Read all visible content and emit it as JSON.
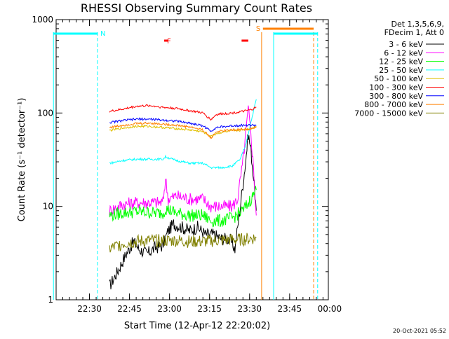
{
  "chart_data": {
    "type": "line",
    "title": "RHESSI Observing Summary Count Rates",
    "xlabel": "Start Time (12-Apr-12 22:20:02)",
    "ylabel": "Count Rate (s⁻¹ detector⁻¹)",
    "y_scale": "log",
    "ylim": [
      1,
      1000
    ],
    "y_ticks": [
      {
        "value": 1,
        "label": "1"
      },
      {
        "value": 10,
        "label": "10"
      },
      {
        "value": 100,
        "label": "100"
      },
      {
        "value": 1000,
        "label": "1000"
      }
    ],
    "xlim_min": [
      0,
      102
    ],
    "x_ticks": [
      {
        "t": 12.5,
        "label": "22:30"
      },
      {
        "t": 27.5,
        "label": "22:45"
      },
      {
        "t": 42.5,
        "label": "23:00"
      },
      {
        "t": 57.5,
        "label": "23:15"
      },
      {
        "t": 72.5,
        "label": "23:30"
      },
      {
        "t": 87.5,
        "label": "23:45"
      },
      {
        "t": 102.5,
        "label": "00:00"
      }
    ],
    "legend_header": [
      "Det 1,3,5,6,9,",
      "FDecim 1, Att 0"
    ],
    "legend_placement": "right of plot",
    "series": [
      {
        "name": "3 - 6 keV",
        "color": "#000000",
        "points": [
          [
            20,
            1.4
          ],
          [
            23,
            2.0
          ],
          [
            26,
            3.0
          ],
          [
            29,
            4.2
          ],
          [
            31,
            3.5
          ],
          [
            34,
            3.1
          ],
          [
            37,
            3.6
          ],
          [
            40,
            3.8
          ],
          [
            42,
            5.5
          ],
          [
            44,
            6.5
          ],
          [
            47,
            6.0
          ],
          [
            50,
            5.5
          ],
          [
            53,
            6.0
          ],
          [
            56,
            5.0
          ],
          [
            59,
            5.0
          ],
          [
            62,
            4.5
          ],
          [
            65,
            4.5
          ],
          [
            67,
            3.5
          ],
          [
            69,
            10
          ],
          [
            71,
            30
          ],
          [
            72,
            60
          ],
          [
            73,
            40
          ],
          [
            74,
            20
          ],
          [
            75,
            9
          ]
        ]
      },
      {
        "name": "6 - 12 keV",
        "color": "#ff00ff",
        "points": [
          [
            20,
            9.0
          ],
          [
            25,
            10.5
          ],
          [
            30,
            11
          ],
          [
            35,
            11
          ],
          [
            40,
            11
          ],
          [
            41,
            20
          ],
          [
            42,
            12
          ],
          [
            45,
            13
          ],
          [
            50,
            12
          ],
          [
            55,
            12
          ],
          [
            58,
            10
          ],
          [
            62,
            10
          ],
          [
            66,
            10
          ],
          [
            68,
            12
          ],
          [
            70,
            30
          ],
          [
            72,
            110
          ],
          [
            73,
            60
          ],
          [
            74,
            25
          ],
          [
            75,
            8
          ]
        ]
      },
      {
        "name": "12 - 25 keV",
        "color": "#00ff00",
        "points": [
          [
            20,
            8.0
          ],
          [
            25,
            8.5
          ],
          [
            30,
            8.8
          ],
          [
            35,
            8.6
          ],
          [
            40,
            8.5
          ],
          [
            41,
            9.5
          ],
          [
            45,
            8.5
          ],
          [
            50,
            8.0
          ],
          [
            55,
            8.0
          ],
          [
            58,
            7.0
          ],
          [
            62,
            7.0
          ],
          [
            66,
            7.5
          ],
          [
            70,
            9
          ],
          [
            73,
            12
          ],
          [
            75,
            15
          ]
        ]
      },
      {
        "name": "25 - 50 keV",
        "color": "#00ffff",
        "points": [
          [
            20,
            29
          ],
          [
            25,
            31
          ],
          [
            30,
            32
          ],
          [
            35,
            32
          ],
          [
            40,
            32
          ],
          [
            41,
            34
          ],
          [
            45,
            31
          ],
          [
            50,
            29
          ],
          [
            55,
            29
          ],
          [
            58,
            26
          ],
          [
            62,
            26
          ],
          [
            66,
            27
          ],
          [
            69,
            32
          ],
          [
            71,
            45
          ],
          [
            73,
            80
          ],
          [
            75,
            140
          ]
        ]
      },
      {
        "name": "50 - 100 keV",
        "color": "#e0c000",
        "points": [
          [
            20,
            65
          ],
          [
            25,
            69
          ],
          [
            30,
            72
          ],
          [
            35,
            72
          ],
          [
            40,
            70
          ],
          [
            45,
            68
          ],
          [
            50,
            66
          ],
          [
            55,
            63
          ],
          [
            58,
            56
          ],
          [
            60,
            60
          ],
          [
            62,
            62
          ],
          [
            66,
            64
          ],
          [
            70,
            66
          ],
          [
            73,
            68
          ],
          [
            75,
            72
          ]
        ]
      },
      {
        "name": "100 - 300 keV",
        "color": "#ff0000",
        "points": [
          [
            20,
            104
          ],
          [
            25,
            110
          ],
          [
            30,
            118
          ],
          [
            35,
            120
          ],
          [
            40,
            115
          ],
          [
            45,
            112
          ],
          [
            50,
            106
          ],
          [
            55,
            100
          ],
          [
            58,
            85
          ],
          [
            60,
            96
          ],
          [
            62,
            98
          ],
          [
            66,
            100
          ],
          [
            70,
            104
          ],
          [
            73,
            108
          ],
          [
            75,
            115
          ]
        ]
      },
      {
        "name": "300 - 800 keV",
        "color": "#0000ff",
        "points": [
          [
            20,
            79
          ],
          [
            25,
            83
          ],
          [
            30,
            86
          ],
          [
            35,
            86
          ],
          [
            40,
            84
          ],
          [
            45,
            82
          ],
          [
            50,
            78
          ],
          [
            55,
            73
          ],
          [
            58,
            64
          ],
          [
            60,
            70
          ],
          [
            62,
            71
          ],
          [
            66,
            73
          ],
          [
            70,
            74
          ],
          [
            73,
            74
          ],
          [
            75,
            74
          ]
        ]
      },
      {
        "name": "800 - 7000 keV",
        "color": "#ff8000",
        "points": [
          [
            20,
            70
          ],
          [
            25,
            74
          ],
          [
            30,
            77
          ],
          [
            35,
            78
          ],
          [
            40,
            76
          ],
          [
            45,
            74
          ],
          [
            50,
            71
          ],
          [
            55,
            66
          ],
          [
            58,
            54
          ],
          [
            60,
            63
          ],
          [
            62,
            64
          ],
          [
            66,
            66
          ],
          [
            70,
            67
          ],
          [
            73,
            68
          ],
          [
            75,
            70
          ]
        ]
      },
      {
        "name": "7000 - 15000 keV",
        "color": "#808000",
        "points": [
          [
            20,
            3.5
          ],
          [
            25,
            4.0
          ],
          [
            30,
            4.2
          ],
          [
            35,
            4.3
          ],
          [
            40,
            4.3
          ],
          [
            45,
            4.3
          ],
          [
            50,
            4.2
          ],
          [
            55,
            4.2
          ],
          [
            60,
            4.3
          ],
          [
            65,
            4.4
          ],
          [
            70,
            4.4
          ],
          [
            75,
            4.6
          ]
        ]
      }
    ],
    "flags": [
      {
        "label": "N",
        "color": "#00ffff",
        "x_min": 15.5
      },
      {
        "label": "F",
        "color": "#ff0000",
        "x_min": 40.5
      },
      {
        "label": "S",
        "color": "#ff8000",
        "x_min": 77
      }
    ],
    "night_segments": [
      {
        "from": -1,
        "to": 15.5
      },
      {
        "from": 81.5,
        "to": 98
      }
    ],
    "flare_segments": [
      {
        "from": 40.5,
        "to": 42
      },
      {
        "from": 69.5,
        "to": 72
      }
    ],
    "saa_segments": [
      {
        "from": 77.5,
        "to": 96.5
      }
    ],
    "event_lines": [
      {
        "x": 15.5,
        "color": "#00ffff",
        "style": "dashed"
      },
      {
        "x": 81.5,
        "color": "#00ffff",
        "style": "solid"
      },
      {
        "x": 98,
        "color": "#00ffff",
        "style": "dashed"
      },
      {
        "x": 77,
        "color": "#ff8000",
        "style": "solid"
      },
      {
        "x": 96.5,
        "color": "#ff8000",
        "style": "dashed"
      },
      {
        "x": -1,
        "color": "#00ffff",
        "style": "solid"
      }
    ]
  },
  "footer": {
    "timestamp": "20-Oct-2021 05:52"
  }
}
